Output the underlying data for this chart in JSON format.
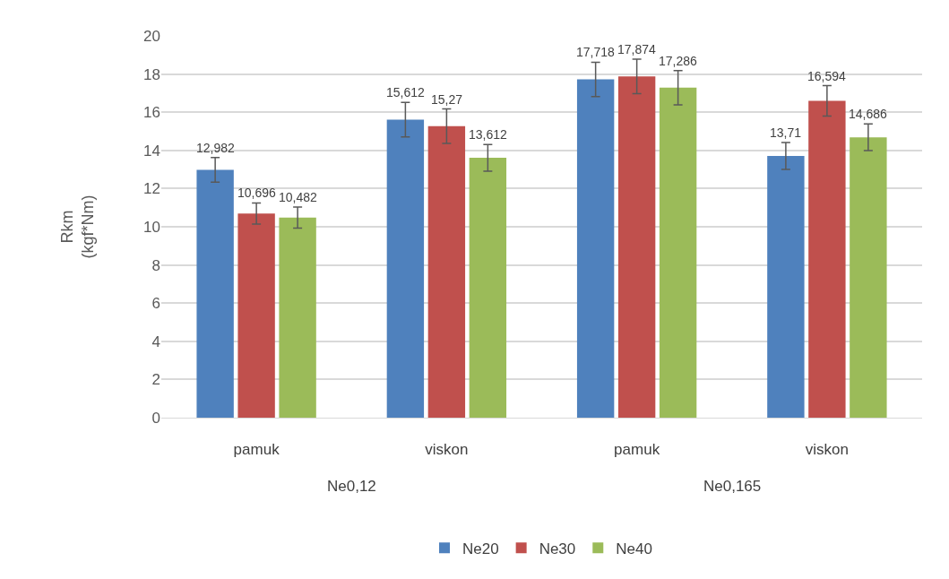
{
  "chart_data": {
    "type": "bar",
    "ylabel": "Rkm\n(kgf*Nm)",
    "categories": [
      "pamuk",
      "viskon",
      "pamuk",
      "viskon"
    ],
    "annotations": [
      "Ne0,12",
      "Ne0,165"
    ],
    "series": [
      {
        "name": "Ne20",
        "color": "#4f81bd",
        "values": [
          12.982,
          15.612,
          17.718,
          13.71
        ],
        "errors": [
          0.65,
          0.9,
          0.9,
          0.7
        ],
        "value_labels": [
          "12,982",
          "15,612",
          "17,718",
          "13,71"
        ]
      },
      {
        "name": "Ne30",
        "color": "#c0504d",
        "values": [
          10.696,
          15.27,
          17.874,
          16.594
        ],
        "errors": [
          0.55,
          0.9,
          0.9,
          0.8
        ],
        "value_labels": [
          "10,696",
          "15,27",
          "17,874",
          "16,594"
        ]
      },
      {
        "name": "Ne40",
        "color": "#9bbb59",
        "values": [
          10.482,
          13.612,
          17.286,
          14.686
        ],
        "errors": [
          0.55,
          0.7,
          0.9,
          0.7
        ],
        "value_labels": [
          "10,482",
          "13,612",
          "17,286",
          "14,686"
        ]
      }
    ],
    "ylim": [
      0,
      20
    ],
    "yticks": [
      0,
      2,
      4,
      6,
      8,
      10,
      12,
      14,
      16,
      18,
      20
    ],
    "grid": "y",
    "legend": "bottom"
  }
}
